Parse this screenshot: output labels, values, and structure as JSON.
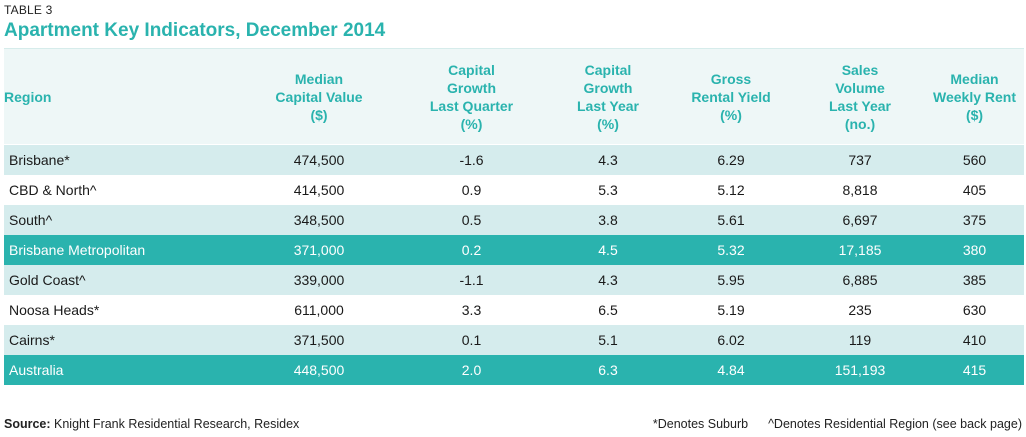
{
  "table_label": "TABLE 3",
  "title": "Apartment Key Indicators, December 2014",
  "columns": [
    "Region",
    "Median\nCapital Value\n($)",
    "Capital\nGrowth\nLast Quarter\n(%)",
    "Capital\nGrowth\nLast Year\n(%)",
    "Gross\nRental Yield\n(%)",
    "Sales\nVolume\nLast Year\n(no.)",
    "Median\nWeekly Rent\n($)"
  ],
  "rows": [
    {
      "region": "Brisbane*",
      "median_capital_value": "474,500",
      "growth_quarter": "-1.6",
      "growth_year": "4.3",
      "rental_yield": "6.29",
      "sales_volume": "737",
      "weekly_rent": "560",
      "style": "light"
    },
    {
      "region": "CBD & North^",
      "median_capital_value": "414,500",
      "growth_quarter": "0.9",
      "growth_year": "5.3",
      "rental_yield": "5.12",
      "sales_volume": "8,818",
      "weekly_rent": "405",
      "style": "white"
    },
    {
      "region": "South^",
      "median_capital_value": "348,500",
      "growth_quarter": "0.5",
      "growth_year": "3.8",
      "rental_yield": "5.61",
      "sales_volume": "6,697",
      "weekly_rent": "375",
      "style": "light"
    },
    {
      "region": "Brisbane Metropolitan",
      "median_capital_value": "371,000",
      "growth_quarter": "0.2",
      "growth_year": "4.5",
      "rental_yield": "5.32",
      "sales_volume": "17,185",
      "weekly_rent": "380",
      "style": "dark"
    },
    {
      "region": "Gold Coast^",
      "median_capital_value": "339,000",
      "growth_quarter": "-1.1",
      "growth_year": "4.3",
      "rental_yield": "5.95",
      "sales_volume": "6,885",
      "weekly_rent": "385",
      "style": "light"
    },
    {
      "region": "Noosa Heads*",
      "median_capital_value": "611,000",
      "growth_quarter": "3.3",
      "growth_year": "6.5",
      "rental_yield": "5.19",
      "sales_volume": "235",
      "weekly_rent": "630",
      "style": "white"
    },
    {
      "region": "Cairns*",
      "median_capital_value": "371,500",
      "growth_quarter": "0.1",
      "growth_year": "5.1",
      "rental_yield": "6.02",
      "sales_volume": "119",
      "weekly_rent": "410",
      "style": "light"
    },
    {
      "region": "Australia",
      "median_capital_value": "448,500",
      "growth_quarter": "2.0",
      "growth_year": "6.3",
      "rental_yield": "4.84",
      "sales_volume": "151,193",
      "weekly_rent": "415",
      "style": "dark"
    }
  ],
  "footer": {
    "source_label": "Source:",
    "source_text": " Knight Frank Residential Research, Residex",
    "note_suburb": "*Denotes Suburb",
    "note_region": "^Denotes Residential Region (see back page)"
  },
  "colors": {
    "accent": "#2ab3ae",
    "row_light": "#d5eced",
    "header_bg": "#eef7f7"
  }
}
